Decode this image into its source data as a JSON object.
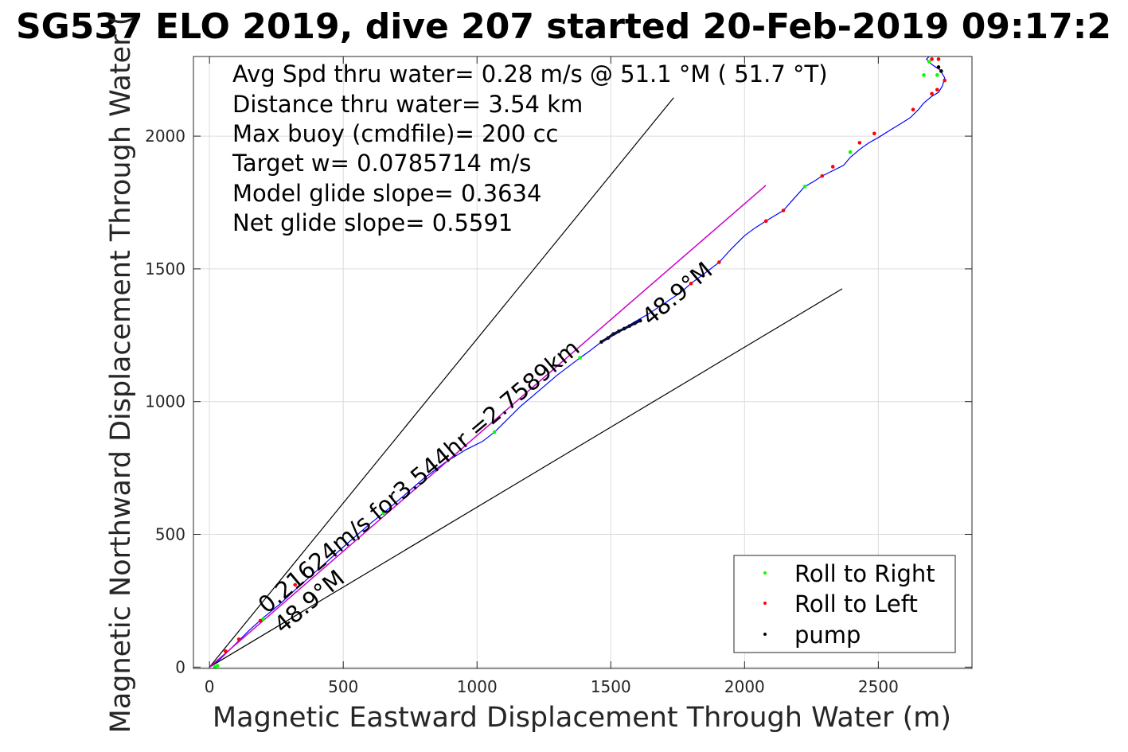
{
  "title": "SG537 ELO 2019, dive 207 started 20-Feb-2019 09:17:2",
  "chart_data": {
    "type": "line",
    "xlabel": "Magnetic Eastward Displacement Through Water (m)",
    "ylabel": "Magnetic Northward Displacement Through Water (",
    "xlim": [
      -60,
      2850
    ],
    "ylim": [
      -5,
      2300
    ],
    "xticks": [
      0,
      500,
      1000,
      1500,
      2000,
      2500
    ],
    "yticks": [
      0,
      500,
      1000,
      1500,
      2000
    ],
    "xtick_labels": [
      "0",
      "500",
      "1000",
      "1500",
      "2000",
      "2500"
    ],
    "ytick_labels": [
      "0",
      "500",
      "1000",
      "1500",
      "2000"
    ],
    "grid": true,
    "stats_text": [
      "Avg Spd thru water=  0.28 m/s @  51.1 °M ( 51.7 °T)",
      "Distance thru water=  3.54 km",
      "Max buoy (cmdfile)= 200 cc",
      "Target w= 0.0785714 m/s",
      "Model glide slope= 0.3634",
      "Net glide slope= 0.5591"
    ],
    "annotations": [
      "0.21624m/s for3.544hr =2.7589km",
      "48.9°M",
      "48.9°M"
    ],
    "series": [
      {
        "color": "#0000ff",
        "points": [
          [
            0,
            0
          ],
          [
            40,
            30
          ],
          [
            100,
            90
          ],
          [
            150,
            140
          ],
          [
            200,
            185
          ],
          [
            260,
            235
          ],
          [
            330,
            300
          ],
          [
            420,
            380
          ],
          [
            520,
            470
          ],
          [
            600,
            540
          ],
          [
            650,
            580
          ],
          [
            720,
            640
          ],
          [
            800,
            710
          ],
          [
            880,
            770
          ],
          [
            960,
            820
          ],
          [
            1020,
            850
          ],
          [
            1065,
            885
          ],
          [
            1100,
            920
          ],
          [
            1160,
            980
          ],
          [
            1230,
            1040
          ],
          [
            1300,
            1100
          ],
          [
            1385,
            1165
          ],
          [
            1420,
            1190
          ],
          [
            1465,
            1225
          ],
          [
            1520,
            1255
          ],
          [
            1580,
            1295
          ],
          [
            1640,
            1330
          ],
          [
            1700,
            1370
          ],
          [
            1760,
            1410
          ],
          [
            1800,
            1445
          ],
          [
            1860,
            1490
          ],
          [
            1905,
            1525
          ],
          [
            1950,
            1575
          ],
          [
            2000,
            1625
          ],
          [
            2040,
            1655
          ],
          [
            2080,
            1680
          ],
          [
            2120,
            1705
          ],
          [
            2145,
            1720
          ],
          [
            2180,
            1760
          ],
          [
            2225,
            1810
          ],
          [
            2260,
            1830
          ],
          [
            2290,
            1850
          ],
          [
            2330,
            1870
          ],
          [
            2370,
            1890
          ],
          [
            2395,
            1920
          ],
          [
            2430,
            1950
          ],
          [
            2465,
            1975
          ],
          [
            2500,
            1995
          ],
          [
            2540,
            2020
          ],
          [
            2580,
            2045
          ],
          [
            2620,
            2070
          ],
          [
            2650,
            2100
          ],
          [
            2670,
            2125
          ],
          [
            2700,
            2150
          ],
          [
            2725,
            2165
          ],
          [
            2740,
            2190
          ],
          [
            2748,
            2220
          ],
          [
            2730,
            2250
          ],
          [
            2700,
            2270
          ],
          [
            2680,
            2290
          ],
          [
            2690,
            2300
          ]
        ]
      },
      {
        "color": "#000000",
        "points": [
          [
            0,
            0
          ],
          [
            1735,
            2145
          ]
        ]
      },
      {
        "color": "#000000",
        "points": [
          [
            0,
            0
          ],
          [
            2365,
            1425
          ]
        ]
      },
      {
        "color": "#cc00cc",
        "points": [
          [
            0,
            0
          ],
          [
            2080,
            1815
          ]
        ]
      }
    ],
    "legend": {
      "position": "bottom-right",
      "entries": [
        {
          "label": "Roll to Right",
          "color": "#00ff00"
        },
        {
          "label": "Roll to Left",
          "color": "#ff0000"
        },
        {
          "label": "pump",
          "color": "#000000"
        }
      ]
    },
    "markers": {
      "roll_right": [
        [
          20,
          0
        ],
        [
          30,
          5
        ],
        [
          200,
          180
        ],
        [
          650,
          580
        ],
        [
          1065,
          885
        ],
        [
          1385,
          1165
        ],
        [
          2225,
          1810
        ],
        [
          2395,
          1940
        ],
        [
          2670,
          2230
        ],
        [
          2690,
          2280
        ],
        [
          2720,
          2230
        ]
      ],
      "roll_left": [
        [
          60,
          60
        ],
        [
          110,
          105
        ],
        [
          190,
          175
        ],
        [
          320,
          310
        ],
        [
          1800,
          1445
        ],
        [
          1905,
          1525
        ],
        [
          2080,
          1680
        ],
        [
          2145,
          1720
        ],
        [
          2290,
          1850
        ],
        [
          2330,
          1885
        ],
        [
          2430,
          1975
        ],
        [
          2485,
          2010
        ],
        [
          2630,
          2100
        ],
        [
          2700,
          2160
        ],
        [
          2720,
          2175
        ],
        [
          2700,
          2290
        ],
        [
          2725,
          2290
        ],
        [
          2748,
          2210
        ]
      ],
      "pump": [
        [
          1465,
          1225
        ],
        [
          1490,
          1240
        ],
        [
          1510,
          1255
        ],
        [
          1530,
          1265
        ],
        [
          1550,
          1275
        ],
        [
          1570,
          1285
        ],
        [
          1590,
          1295
        ],
        [
          1610,
          1305
        ],
        [
          2735,
          2245
        ],
        [
          2725,
          2260
        ]
      ]
    }
  }
}
